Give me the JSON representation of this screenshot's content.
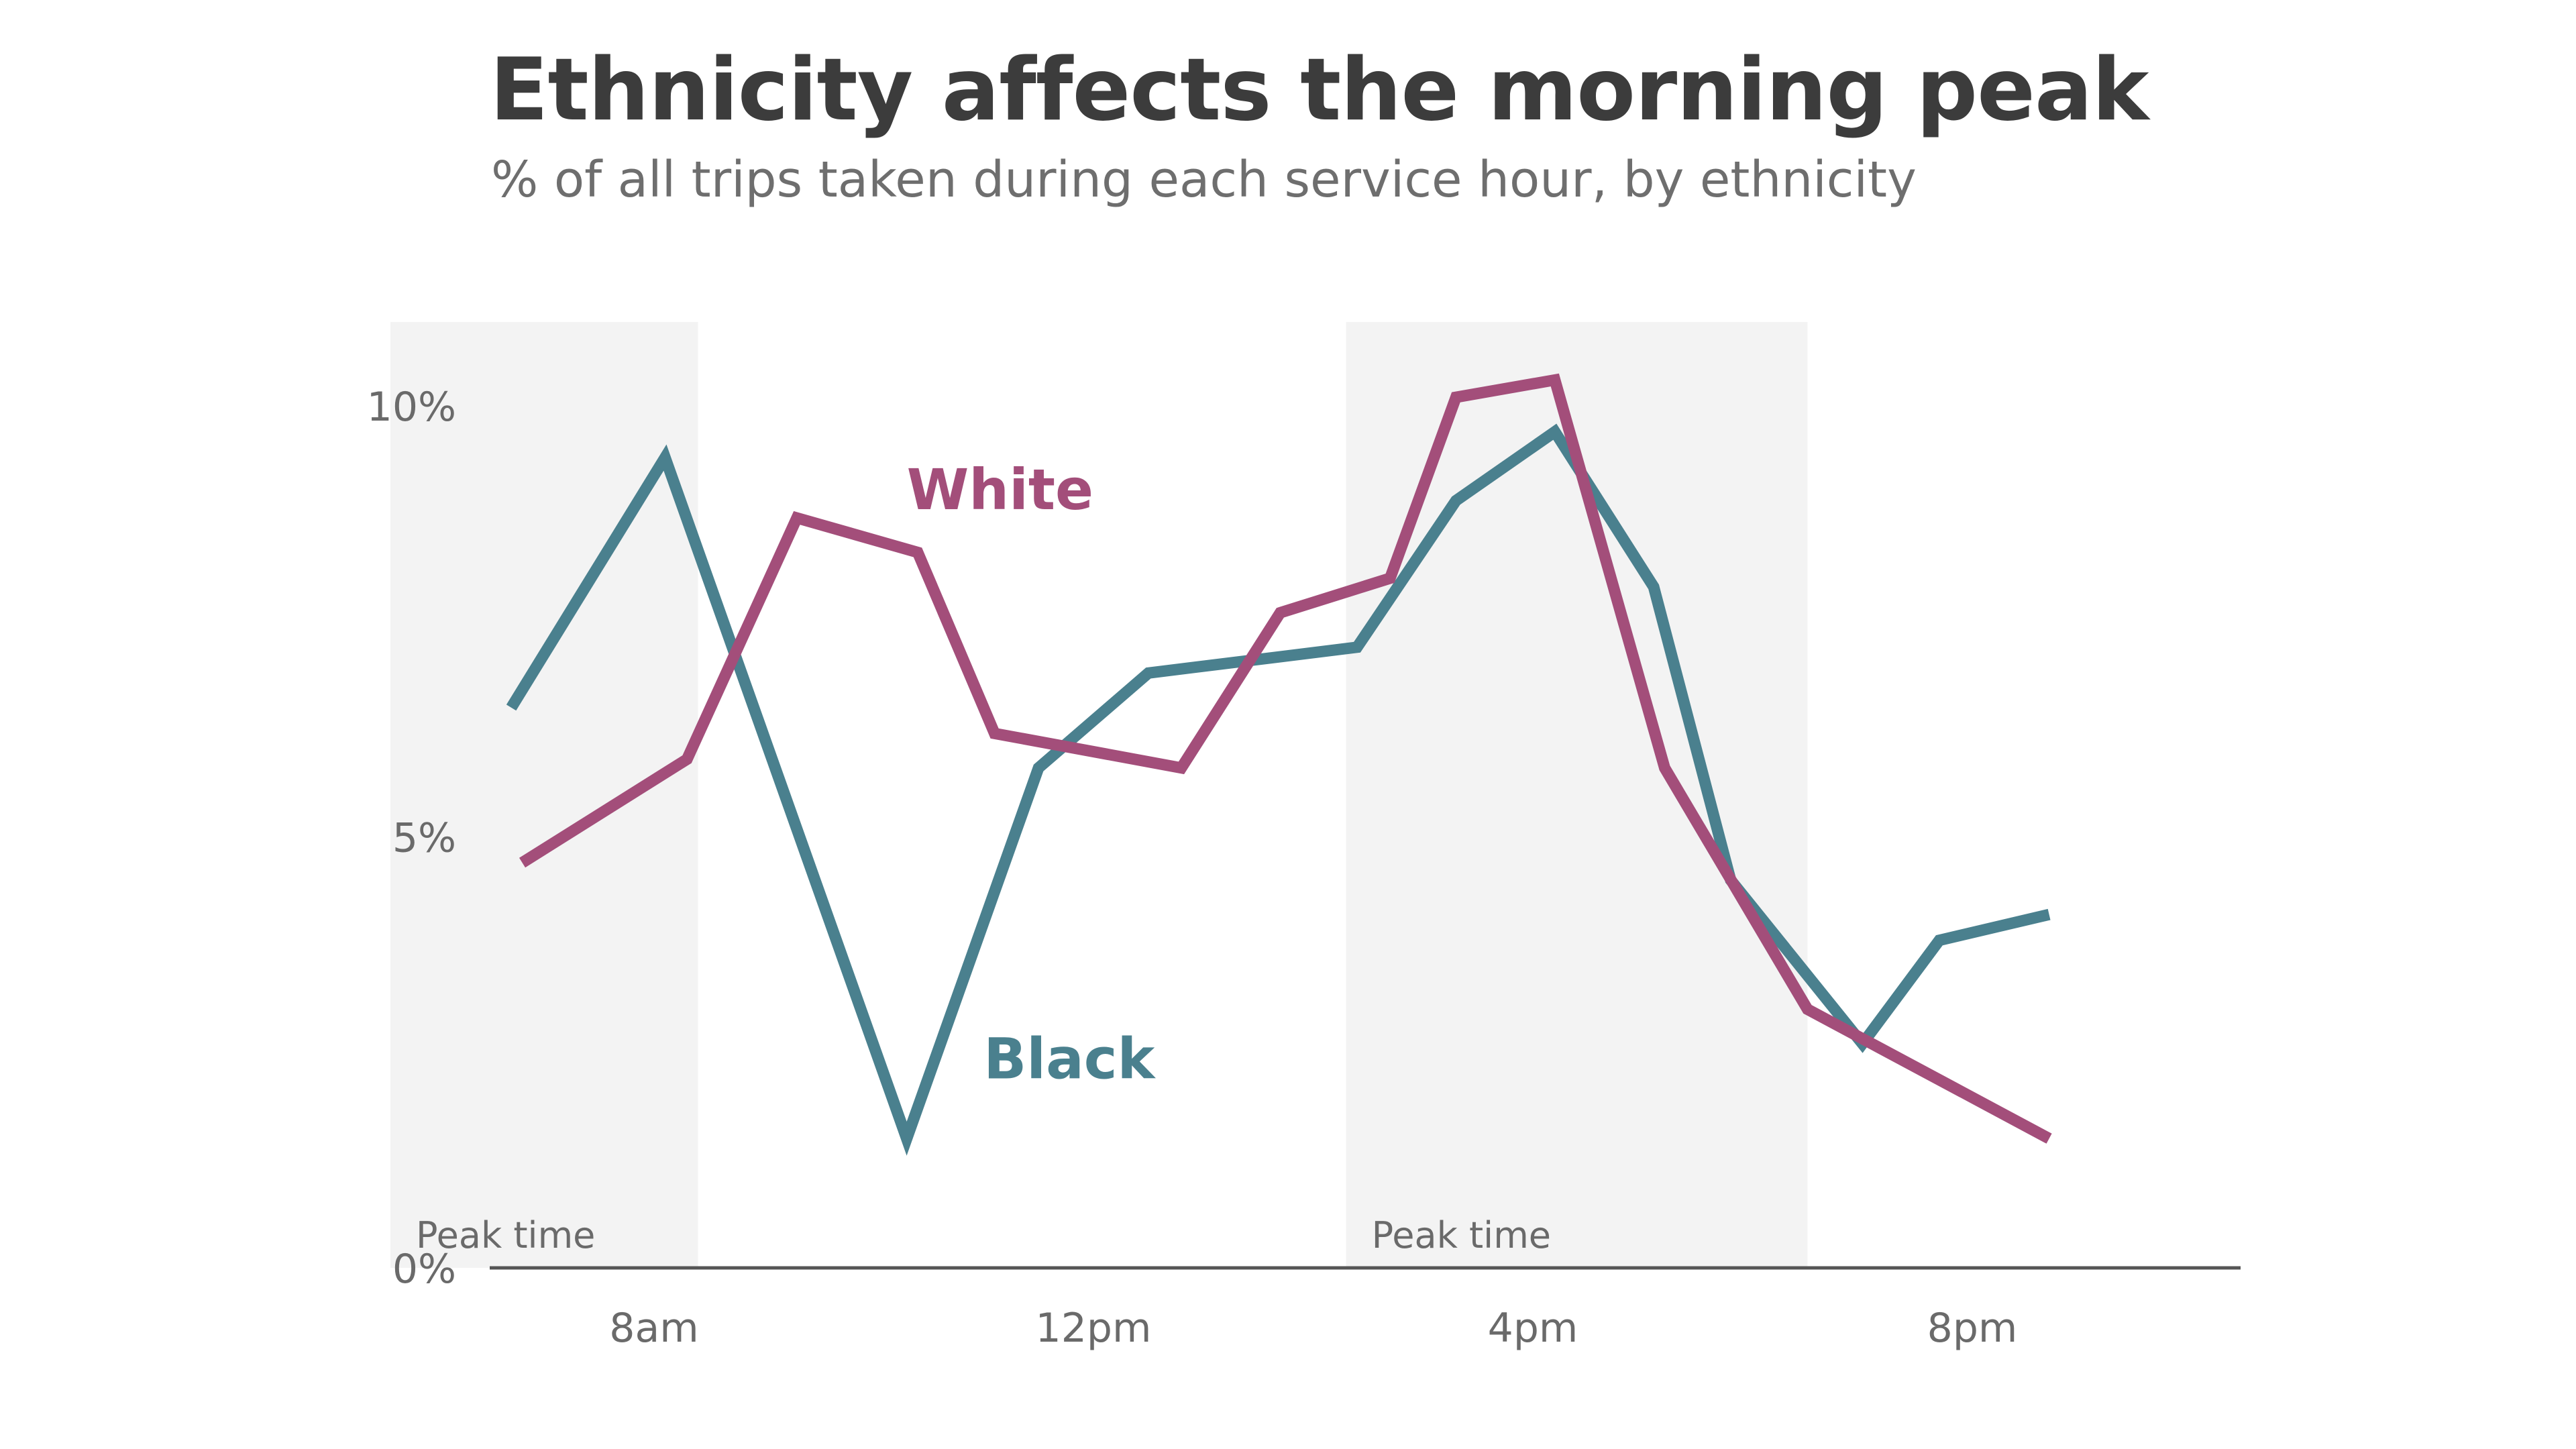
{
  "chart_data": {
    "type": "line",
    "title": "Ethnicity affects the morning peak",
    "subtitle": "% of all trips taken during each service hour, by ethnicity",
    "xlabel": "",
    "ylabel": "",
    "x": [
      6,
      7,
      8,
      9,
      10,
      11,
      12,
      13,
      14,
      15,
      16,
      17,
      18,
      19,
      20,
      21,
      22,
      23,
      24
    ],
    "x_ticks": [
      {
        "value": 8,
        "label": "8am"
      },
      {
        "value": 12,
        "label": "12pm"
      },
      {
        "value": 16,
        "label": "4pm"
      },
      {
        "value": 20,
        "label": "8pm"
      }
    ],
    "y_ticks": [
      {
        "value": 0,
        "label": "0%"
      },
      {
        "value": 5,
        "label": "5%"
      },
      {
        "value": 10,
        "label": "10%"
      }
    ],
    "ylim": [
      0,
      10.5
    ],
    "grid": false,
    "series": [
      {
        "name": "Black",
        "color": "#4a808e",
        "points": [
          [
            6.7,
            6.5
          ],
          [
            8.1,
            9.4
          ],
          [
            10.3,
            1.5
          ],
          [
            11.5,
            5.8
          ],
          [
            12.5,
            6.9
          ],
          [
            14.4,
            7.2
          ],
          [
            15.3,
            8.9
          ],
          [
            16.2,
            9.7
          ],
          [
            17.1,
            7.9
          ],
          [
            17.8,
            4.5
          ],
          [
            19.0,
            2.6
          ],
          [
            19.7,
            3.8
          ],
          [
            20.7,
            4.1
          ]
        ],
        "label_pos": [
          11.0,
          2.2
        ]
      },
      {
        "name": "White",
        "color": "#a34e7a",
        "points": [
          [
            6.8,
            4.7
          ],
          [
            8.3,
            5.9
          ],
          [
            9.3,
            8.7
          ],
          [
            10.4,
            8.3
          ],
          [
            11.1,
            6.2
          ],
          [
            12.8,
            5.8
          ],
          [
            13.7,
            7.6
          ],
          [
            14.7,
            8.0
          ],
          [
            15.3,
            10.1
          ],
          [
            16.2,
            10.3
          ],
          [
            17.2,
            5.8
          ],
          [
            18.5,
            3.0
          ],
          [
            20.7,
            1.5
          ]
        ],
        "label_pos": [
          10.3,
          8.8
        ]
      }
    ],
    "peak_bands": [
      {
        "x0": 5.6,
        "x1": 8.4,
        "label": "Peak time"
      },
      {
        "x0": 14.3,
        "x1": 18.5,
        "label": "Peak time"
      }
    ]
  }
}
